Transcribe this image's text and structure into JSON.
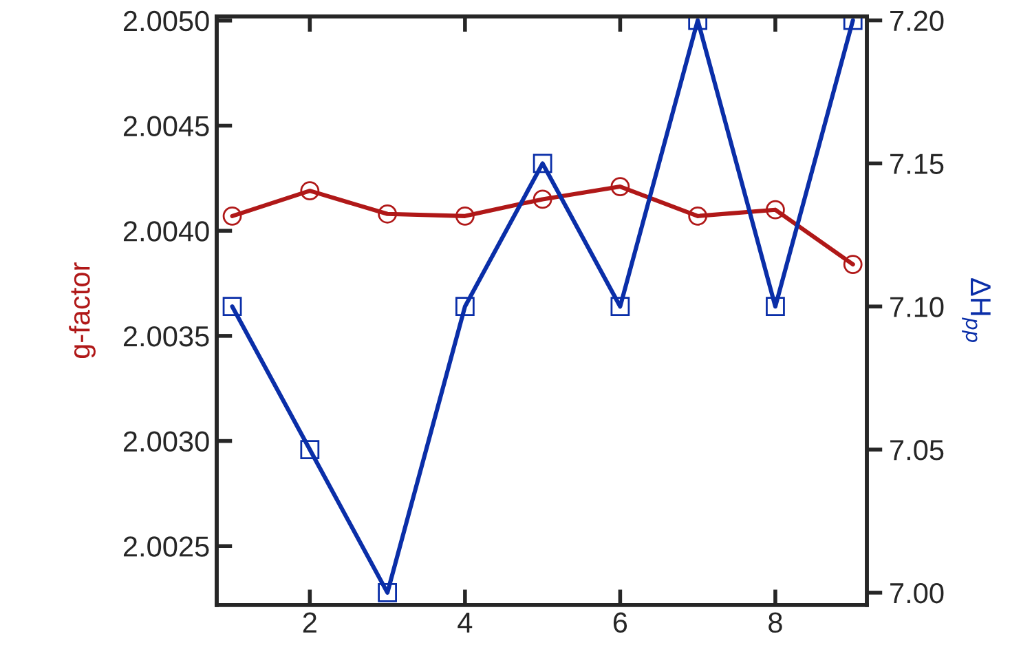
{
  "chart_data": {
    "type": "line",
    "ylabel": "g-factor",
    "y2label": "ΔH$_{pp}$",
    "x": [
      1,
      2,
      3,
      4,
      5,
      6,
      7,
      8,
      9
    ],
    "series": [
      {
        "color": "#b01818",
        "marker": "circle",
        "values": [
          2.00407,
          2.00419,
          2.00408,
          2.00407,
          2.00415,
          2.00421,
          2.00407,
          2.0041,
          2.00384
        ]
      },
      {
        "color": "#0a2ea8",
        "marker": "square",
        "axis": "y2",
        "values": [
          7.1,
          7.05,
          7.0,
          7.1,
          7.15,
          7.1,
          7.2,
          7.1,
          7.2
        ]
      }
    ],
    "xlim": [
      0.8,
      9.18
    ],
    "xticks": [
      2,
      4,
      6,
      8
    ],
    "ylim": [
      2.00222,
      2.00502
    ],
    "yticks": [
      {
        "value": 2.0025,
        "label": "2.0025"
      },
      {
        "value": 2.003,
        "label": "2.0030"
      },
      {
        "value": 2.0035,
        "label": "2.0035"
      },
      {
        "value": 2.004,
        "label": "2.0040"
      },
      {
        "value": 2.0045,
        "label": "2.0045"
      },
      {
        "value": 2.005,
        "label": "2.0050"
      }
    ],
    "y2lim": [
      6.9957,
      7.2014
    ],
    "y2ticks": [
      {
        "value": 7.0,
        "label": "7.00"
      },
      {
        "value": 7.05,
        "label": "7.05"
      },
      {
        "value": 7.1,
        "label": "7.10"
      },
      {
        "value": 7.15,
        "label": "7.15"
      },
      {
        "value": 7.2,
        "label": "7.20"
      }
    ],
    "grid": false,
    "legend": false,
    "line_style": "solid"
  }
}
